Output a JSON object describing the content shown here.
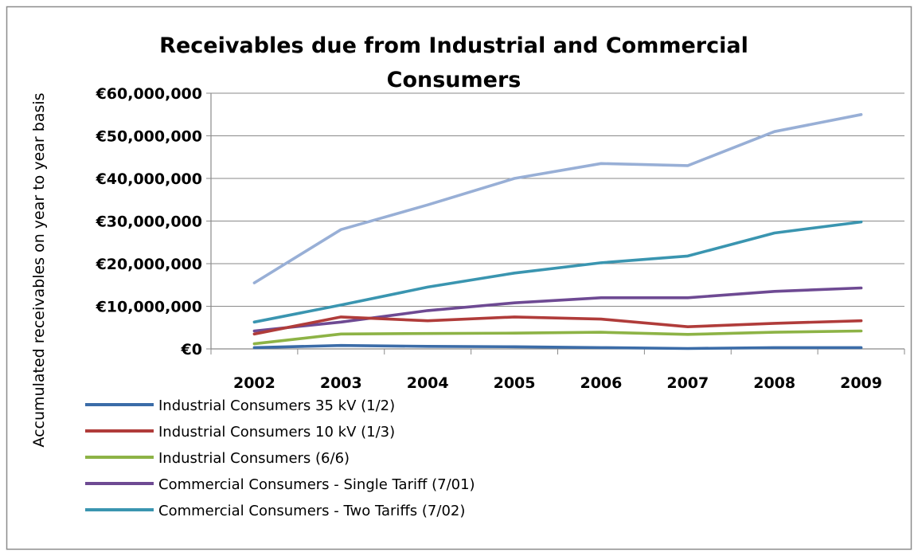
{
  "chart_data": {
    "type": "line",
    "title_lines": [
      "Receivables due from Industrial and Commercial",
      "Consumers"
    ],
    "ylabel": "Accumulated receivables on year to year basis",
    "xlabel": "",
    "categories": [
      "2002",
      "2003",
      "2004",
      "2005",
      "2006",
      "2007",
      "2008",
      "2009"
    ],
    "yticks": [
      "€0",
      "€10,000,000",
      "€20,000,000",
      "€30,000,000",
      "€40,000,000",
      "€50,000,000",
      "€60,000,000"
    ],
    "ylim": [
      0,
      60000000
    ],
    "grid": true,
    "legend_position": "bottom",
    "series": [
      {
        "name": "Industrial Consumers 35 kV (1/2)",
        "color": "#3b6ca8",
        "values": [
          300000,
          800000,
          600000,
          500000,
          300000,
          100000,
          300000,
          300000
        ],
        "in_legend": true
      },
      {
        "name": "Industrial Consumers 10 kV (1/3)",
        "color": "#b03c3a",
        "values": [
          3500000,
          7500000,
          6600000,
          7500000,
          7000000,
          5200000,
          6000000,
          6600000
        ],
        "in_legend": true
      },
      {
        "name": "Industrial Consumers  (6/6)",
        "color": "#8db346",
        "values": [
          1200000,
          3500000,
          3600000,
          3700000,
          3900000,
          3400000,
          3900000,
          4200000
        ],
        "in_legend": true
      },
      {
        "name": "Commercial Consumers - Single Tariff (7/01)",
        "color": "#6e4a93",
        "values": [
          4200000,
          6300000,
          9000000,
          10800000,
          12000000,
          12000000,
          13500000,
          14300000
        ],
        "in_legend": true
      },
      {
        "name": "Commercial Consumers - Two Tariffs (7/02)",
        "color": "#3a95b0",
        "values": [
          6300000,
          10300000,
          14500000,
          17800000,
          20200000,
          21800000,
          27200000,
          29800000
        ],
        "in_legend": true
      },
      {
        "name": "",
        "color": "#98afd6",
        "values": [
          15500000,
          28000000,
          33800000,
          40000000,
          43500000,
          43000000,
          51000000,
          55000000
        ],
        "in_legend": false
      }
    ]
  }
}
